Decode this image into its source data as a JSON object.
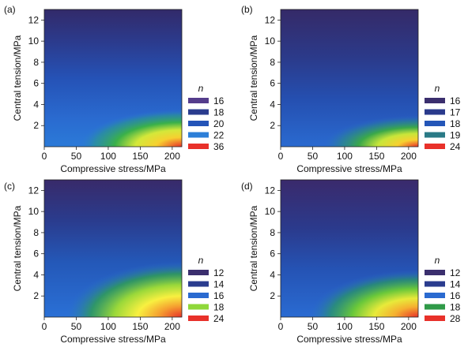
{
  "chart_data": [
    {
      "type": "heatmap",
      "panel_label": "(a)",
      "xlabel": "Compressive stress/MPa",
      "ylabel": "Central tension/MPa",
      "xlim": [
        0,
        215
      ],
      "ylim": [
        0,
        13
      ],
      "x_ticks": [
        "0",
        "50",
        "100",
        "150",
        "200"
      ],
      "y_ticks": [
        "2",
        "4",
        "6",
        "8",
        "10",
        "12"
      ],
      "legend_title": "n",
      "legend": [
        {
          "label": "16",
          "color": "#553d8c"
        },
        {
          "label": "18",
          "color": "#2a3c8e"
        },
        {
          "label": "20",
          "color": "#2454b8"
        },
        {
          "label": "22",
          "color": "#2d7fd8"
        },
        {
          "label": "36",
          "color": "#e8312a"
        }
      ]
    },
    {
      "type": "heatmap",
      "panel_label": "(b)",
      "xlabel": "Compressive stress/MPa",
      "ylabel": "Central tension/MPa",
      "xlim": [
        0,
        215
      ],
      "ylim": [
        0,
        13
      ],
      "x_ticks": [
        "0",
        "50",
        "100",
        "150",
        "200"
      ],
      "y_ticks": [
        "2",
        "4",
        "6",
        "8",
        "10",
        "12"
      ],
      "legend_title": "n",
      "legend": [
        {
          "label": "16",
          "color": "#3b2f6e"
        },
        {
          "label": "17",
          "color": "#2a3a8c"
        },
        {
          "label": "18",
          "color": "#2456b8"
        },
        {
          "label": "19",
          "color": "#2a7a86"
        },
        {
          "label": "24",
          "color": "#e8312a"
        }
      ]
    },
    {
      "type": "heatmap",
      "panel_label": "(c)",
      "xlabel": "Compressive stress/MPa",
      "ylabel": "Central tension/MPa",
      "xlim": [
        0,
        215
      ],
      "ylim": [
        0,
        13
      ],
      "x_ticks": [
        "0",
        "50",
        "100",
        "150",
        "200"
      ],
      "y_ticks": [
        "2",
        "4",
        "6",
        "8",
        "10",
        "12"
      ],
      "legend_title": "n",
      "legend": [
        {
          "label": "12",
          "color": "#3b2f6e"
        },
        {
          "label": "14",
          "color": "#2a3c8e"
        },
        {
          "label": "16",
          "color": "#2a6ad0"
        },
        {
          "label": "18",
          "color": "#8fd83a"
        },
        {
          "label": "24",
          "color": "#e8312a"
        }
      ]
    },
    {
      "type": "heatmap",
      "panel_label": "(d)",
      "xlabel": "Compressive stress/MPa",
      "ylabel": "Central tension/MPa",
      "xlim": [
        0,
        215
      ],
      "ylim": [
        0,
        13
      ],
      "x_ticks": [
        "0",
        "50",
        "100",
        "150",
        "200"
      ],
      "y_ticks": [
        "2",
        "4",
        "6",
        "8",
        "10",
        "12"
      ],
      "legend_title": "n",
      "legend": [
        {
          "label": "12",
          "color": "#3b2f6e"
        },
        {
          "label": "14",
          "color": "#2a3c8e"
        },
        {
          "label": "16",
          "color": "#2a6ad0"
        },
        {
          "label": "18",
          "color": "#2f9a48"
        },
        {
          "label": "28",
          "color": "#e8312a"
        }
      ]
    }
  ]
}
